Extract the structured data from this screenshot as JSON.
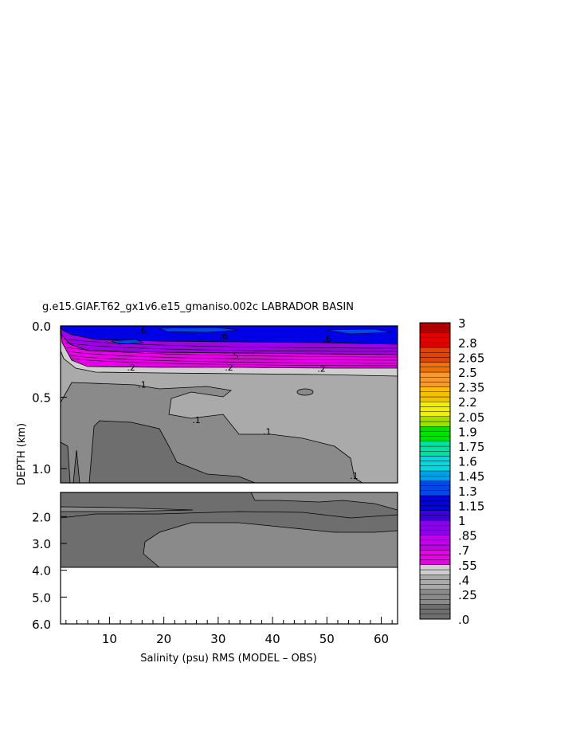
{
  "chart_data": {
    "type": "heatmap",
    "title": "g.e15.GIAF.T62_gx1v6.e15_gmaniso.002c LABRADOR BASIN",
    "xlabel": "Salinity (psu) RMS (MODEL – OBS)",
    "ylabel": "DEPTH (km)",
    "xlim": [
      1,
      63
    ],
    "x_ticks": [
      "10",
      "20",
      "30",
      "40",
      "50",
      "60"
    ],
    "x_tick_values": [
      10,
      20,
      30,
      40,
      50,
      60
    ],
    "upper_panel": {
      "ylim": [
        0.0,
        1.1
      ],
      "y_ticks": [
        "0.0",
        "0.5",
        "1.0"
      ],
      "y_tick_values": [
        0.0,
        0.5,
        1.0
      ]
    },
    "lower_panel": {
      "ylim": [
        1.1,
        6.0
      ],
      "y_ticks": [
        "2.0",
        "3.0",
        "4.0",
        "5.0",
        "6.0"
      ],
      "y_tick_values": [
        2.0,
        3.0,
        4.0,
        5.0,
        6.0
      ],
      "data_bottom_depth": 3.9
    },
    "contour_labels": [
      {
        "text": ".6",
        "x": 16,
        "y": 0.03
      },
      {
        "text": ".6",
        "x": 31,
        "y": 0.07
      },
      {
        "text": ".6",
        "x": 50,
        "y": 0.09
      },
      {
        "text": ".5",
        "x": 33,
        "y": 0.21
      },
      {
        "text": ".2",
        "x": 14,
        "y": 0.29
      },
      {
        "text": ".2",
        "x": 32,
        "y": 0.29
      },
      {
        "text": ".2",
        "x": 49,
        "y": 0.3
      },
      {
        "text": ".1",
        "x": 16,
        "y": 0.41
      },
      {
        "text": ".1",
        "x": 26,
        "y": 0.66
      },
      {
        "text": ".1",
        "x": 39,
        "y": 0.74
      },
      {
        "text": ".1",
        "x": 55,
        "y": 1.05
      }
    ],
    "colorbar": {
      "labels": [
        "3",
        "2.8",
        "2.65",
        "2.5",
        "2.35",
        "2.2",
        "2.05",
        "1.9",
        "1.75",
        "1.6",
        "1.45",
        "1.3",
        "1.15",
        "1",
        ".85",
        ".7",
        ".55",
        ".4",
        ".25",
        ".0"
      ],
      "label_values": [
        3.0,
        2.8,
        2.65,
        2.5,
        2.35,
        2.2,
        2.05,
        1.9,
        1.75,
        1.6,
        1.45,
        1.3,
        1.15,
        1.0,
        0.85,
        0.7,
        0.55,
        0.4,
        0.25,
        0.0
      ],
      "range": [
        0.0,
        3.0
      ],
      "colors_bottom_to_top": [
        "#6e6e6e",
        "#8a8a8a",
        "#aaaaaa",
        "#cfcfcf",
        "#e800e8",
        "#c000e8",
        "#8a00e8",
        "#3c00e0",
        "#0000e6",
        "#0048e8",
        "#00a0e8",
        "#00d8e0",
        "#00e0a0",
        "#00e000",
        "#a0e000",
        "#f0f000",
        "#f5c000",
        "#f59a30",
        "#f07000",
        "#e84000",
        "#e00000",
        "#b00000"
      ]
    }
  }
}
